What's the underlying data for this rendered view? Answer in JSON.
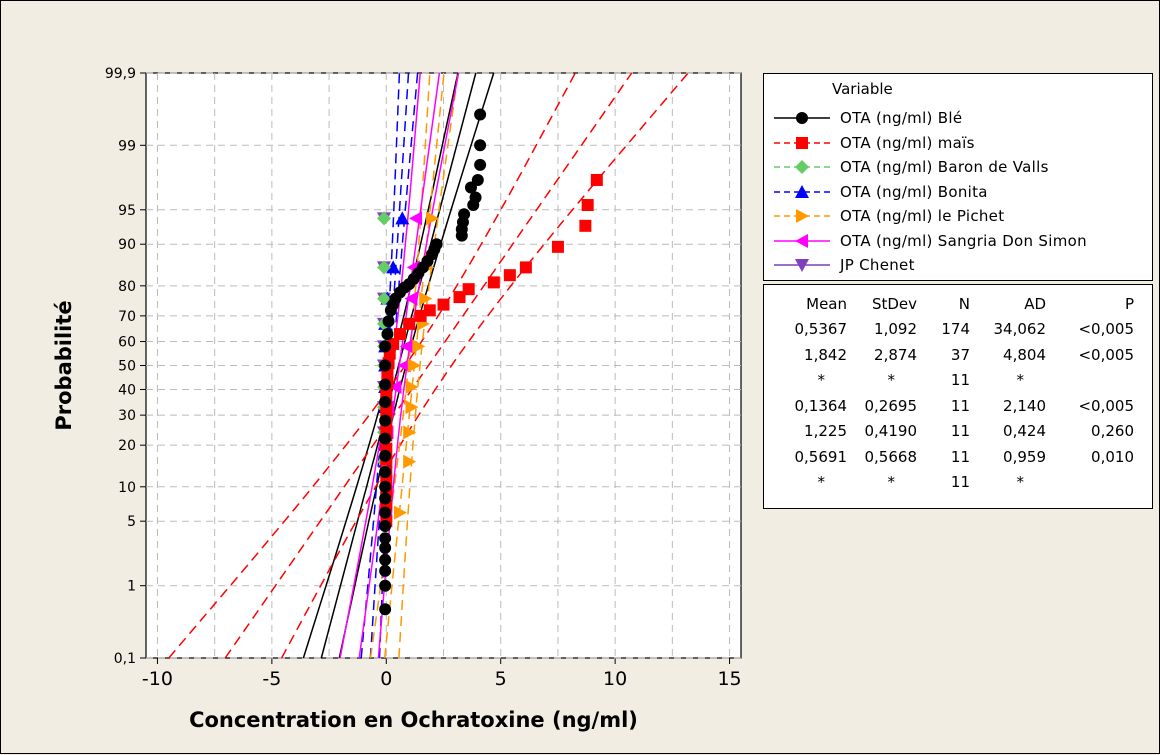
{
  "chart_data": {
    "type": "scatter",
    "subtype": "normal-probability-plot",
    "title": "",
    "xlabel": "Concentration en Ochratoxine (ng/ml)",
    "ylabel": "Probabilité",
    "xlim": [
      -10.5,
      15.5
    ],
    "ylim": [
      0.1,
      99.9
    ],
    "y_scale": "normal-probability",
    "x_ticks": [
      "-10",
      "-5",
      "0",
      "5",
      "10",
      "15"
    ],
    "y_ticks": [
      "0,1",
      "1",
      "5",
      "10",
      "20",
      "30",
      "40",
      "50",
      "60",
      "70",
      "80",
      "90",
      "95",
      "99",
      "99,9"
    ],
    "grid": true,
    "legend_title": "Variable",
    "series": [
      {
        "name": "OTA (ng/ml) Blé",
        "color": "#000000",
        "marker": "circle",
        "line": "solid",
        "points": [
          [
            -0.05,
            0.5
          ],
          [
            -0.05,
            1.0
          ],
          [
            -0.05,
            1.5
          ],
          [
            -0.05,
            2.0
          ],
          [
            -0.05,
            2.7
          ],
          [
            -0.05,
            3.4
          ],
          [
            -0.05,
            4.5
          ],
          [
            -0.05,
            6
          ],
          [
            -0.05,
            8
          ],
          [
            -0.05,
            10
          ],
          [
            -0.05,
            13
          ],
          [
            -0.05,
            17
          ],
          [
            -0.05,
            22
          ],
          [
            -0.05,
            28
          ],
          [
            -0.05,
            35
          ],
          [
            -0.05,
            42
          ],
          [
            -0.05,
            50
          ],
          [
            -0.05,
            58
          ],
          [
            0.05,
            63
          ],
          [
            0.1,
            68
          ],
          [
            0.2,
            72
          ],
          [
            0.3,
            74
          ],
          [
            0.4,
            76
          ],
          [
            0.6,
            78
          ],
          [
            0.8,
            79.5
          ],
          [
            1.0,
            80.5
          ],
          [
            1.2,
            82
          ],
          [
            1.4,
            83.5
          ],
          [
            1.6,
            85
          ],
          [
            1.8,
            86.5
          ],
          [
            2.0,
            88
          ],
          [
            2.1,
            89
          ],
          [
            2.2,
            90
          ],
          [
            3.3,
            91.5
          ],
          [
            3.3,
            92.5
          ],
          [
            3.35,
            93.5
          ],
          [
            3.4,
            94.5
          ],
          [
            3.8,
            95.5
          ],
          [
            3.9,
            96.2
          ],
          [
            3.7,
            97
          ],
          [
            4.0,
            97.5
          ],
          [
            4.1,
            98.3
          ],
          [
            4.1,
            99
          ],
          [
            4.1,
            99.6
          ]
        ],
        "fit": [
          0.5367,
          1.092
        ]
      },
      {
        "name": "OTA (ng/ml) maïs",
        "color": "#ff0000",
        "marker": "square",
        "line": "dashed",
        "points": [
          [
            0.0,
            5
          ],
          [
            0.0,
            7
          ],
          [
            0.0,
            9
          ],
          [
            0.0,
            11
          ],
          [
            0.0,
            13
          ],
          [
            0.0,
            16
          ],
          [
            0.0,
            19
          ],
          [
            0.0,
            23
          ],
          [
            0.0,
            27
          ],
          [
            0.0,
            31
          ],
          [
            0.0,
            35
          ],
          [
            0.0,
            39
          ],
          [
            0.05,
            43
          ],
          [
            0.05,
            47
          ],
          [
            0.1,
            51
          ],
          [
            0.15,
            55
          ],
          [
            0.3,
            59
          ],
          [
            0.6,
            63
          ],
          [
            1.0,
            67
          ],
          [
            1.5,
            70
          ],
          [
            1.9,
            72
          ],
          [
            2.5,
            74
          ],
          [
            3.2,
            76.5
          ],
          [
            3.6,
            79
          ],
          [
            4.7,
            81
          ],
          [
            5.4,
            83
          ],
          [
            6.1,
            85
          ],
          [
            7.5,
            89.5
          ],
          [
            8.7,
            93
          ],
          [
            8.8,
            95.5
          ],
          [
            9.2,
            97.5
          ]
        ],
        "fit": [
          1.842,
          2.874
        ]
      },
      {
        "name": "OTA (ng/ml) Baron de Valls",
        "color": "#66cc66",
        "marker": "diamond",
        "line": "dashed",
        "points": [
          [
            -0.1,
            15.5
          ],
          [
            -0.1,
            24
          ],
          [
            -0.1,
            33
          ],
          [
            -0.1,
            41
          ],
          [
            -0.1,
            50
          ],
          [
            -0.1,
            58
          ],
          [
            -0.1,
            67
          ],
          [
            -0.1,
            76
          ],
          [
            -0.1,
            85
          ],
          [
            -0.1,
            94
          ]
        ]
      },
      {
        "name": "OTA (ng/ml) Bonita",
        "color": "#0000ff",
        "marker": "triangle-up",
        "line": "dashed",
        "points": [
          [
            -0.05,
            15.5
          ],
          [
            -0.05,
            24
          ],
          [
            -0.05,
            33
          ],
          [
            -0.05,
            41
          ],
          [
            -0.05,
            50
          ],
          [
            -0.05,
            58
          ],
          [
            -0.05,
            67
          ],
          [
            0.05,
            76
          ],
          [
            0.3,
            85
          ],
          [
            0.7,
            94
          ]
        ],
        "fit": [
          0.1364,
          0.2695
        ]
      },
      {
        "name": "OTA (ng/ml) le Pichet",
        "color": "#ff9900",
        "marker": "triangle-right",
        "line": "dashed",
        "points": [
          [
            0.6,
            6
          ],
          [
            1.0,
            15.5
          ],
          [
            1.0,
            24
          ],
          [
            1.1,
            33
          ],
          [
            1.1,
            41
          ],
          [
            1.2,
            50
          ],
          [
            1.4,
            58
          ],
          [
            1.6,
            67
          ],
          [
            1.7,
            76
          ],
          [
            1.8,
            85
          ],
          [
            2.0,
            94
          ]
        ],
        "fit": [
          1.225,
          0.419
        ]
      },
      {
        "name": "OTA (ng/ml) Sangria Don Simon",
        "color": "#ff00ff",
        "marker": "triangle-left",
        "line": "solid",
        "points": [
          [
            0.0,
            6
          ],
          [
            0.0,
            15.5
          ],
          [
            0.05,
            24
          ],
          [
            0.1,
            33
          ],
          [
            0.4,
            41
          ],
          [
            0.8,
            50
          ],
          [
            0.9,
            58
          ],
          [
            1.0,
            67
          ],
          [
            1.1,
            76
          ],
          [
            1.2,
            85
          ],
          [
            1.3,
            94
          ]
        ],
        "fit": [
          0.5691,
          0.5668
        ]
      },
      {
        "name": "JP Chenet",
        "color": "#7f3fbf",
        "marker": "triangle-down",
        "line": "solid",
        "points": [
          [
            -0.1,
            15.5
          ],
          [
            -0.1,
            24
          ],
          [
            -0.1,
            33
          ],
          [
            -0.1,
            41
          ],
          [
            -0.1,
            50
          ],
          [
            -0.1,
            58
          ],
          [
            -0.1,
            67
          ],
          [
            -0.1,
            76
          ],
          [
            -0.1,
            85
          ],
          [
            -0.1,
            94
          ]
        ]
      }
    ],
    "stats_table": {
      "columns": [
        "Mean",
        "StDev",
        "N",
        "AD",
        "P"
      ],
      "rows": [
        [
          "0,5367",
          "1,092",
          "174",
          "34,062",
          "<0,005"
        ],
        [
          "1,842",
          "2,874",
          "37",
          "4,804",
          "<0,005"
        ],
        [
          "*",
          "*",
          "11",
          "*",
          ""
        ],
        [
          "0,1364",
          "0,2695",
          "11",
          "2,140",
          "<0,005"
        ],
        [
          "1,225",
          "0,4190",
          "11",
          "0,424",
          "0,260"
        ],
        [
          "0,5691",
          "0,5668",
          "11",
          "0,959",
          "0,010"
        ],
        [
          "*",
          "*",
          "11",
          "*",
          ""
        ]
      ]
    }
  }
}
